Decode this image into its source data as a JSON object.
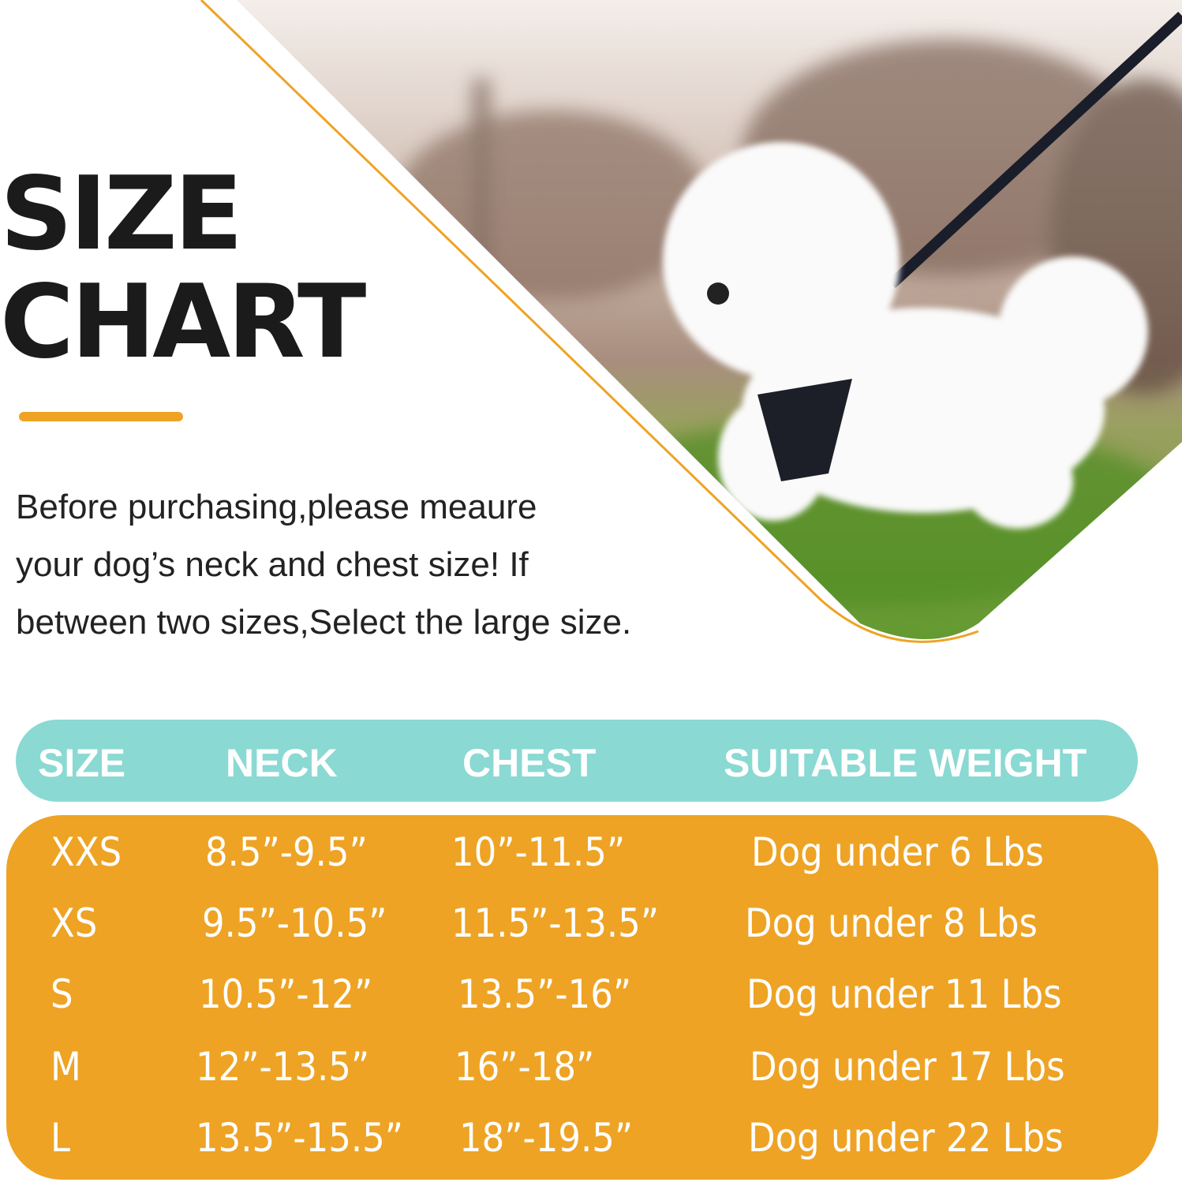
{
  "title": {
    "line1": "SIZE",
    "line2": "CHART"
  },
  "intro": {
    "line1": "Before purchasing,please meaure",
    "line2": "your dog’s neck and chest size! If",
    "line3": "between two sizes,Select the large size."
  },
  "colors": {
    "accent": "#eea324",
    "header": "#8ad9d3",
    "text": "#1b1b1b"
  },
  "table": {
    "headers": [
      "SIZE",
      "NECK",
      "CHEST",
      "SUITABLE WEIGHT"
    ],
    "rows": [
      [
        "XXS",
        "8.5”-9.5”",
        "10”-11.5”",
        "Dog under 6 Lbs"
      ],
      [
        "XS",
        "9.5”-10.5”",
        "11.5”-13.5”",
        "Dog under 8 Lbs"
      ],
      [
        "S",
        "10.5”-12”",
        "13.5”-16”",
        "Dog under 11 Lbs"
      ],
      [
        "M",
        "12”-13.5”",
        "16”-18”",
        "Dog under 17 Lbs"
      ],
      [
        "L",
        "13.5”-15.5”",
        "18”-19.5”",
        "Dog under 22 Lbs"
      ]
    ]
  }
}
